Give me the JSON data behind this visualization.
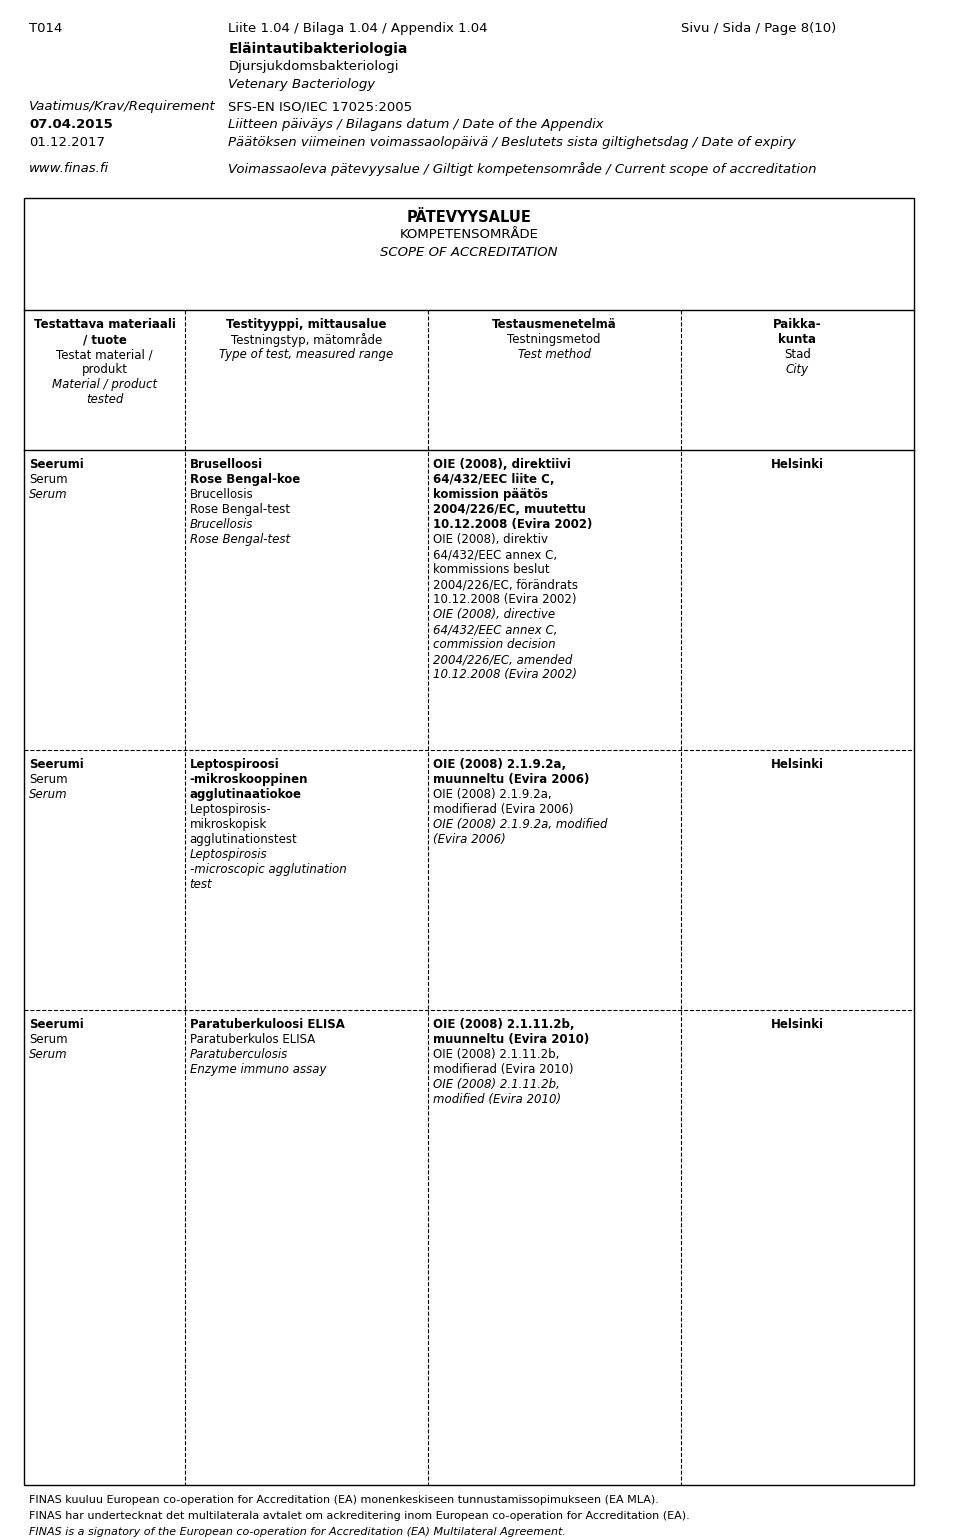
{
  "page_width": 9.6,
  "page_height": 15.4,
  "bg_color": "#ffffff",
  "header": {
    "top_left": "T014",
    "top_center": "Liite 1.04 / Bilaga 1.04 / Appendix 1.04",
    "top_right": "Sivu / Sida / Page 8(10)",
    "line2_bold": "Eläintautibakteriologia",
    "line3": "Djursjukdomsbakteriologi",
    "line4_italic": "Vetenary Bacteriology",
    "req_label": "Vaatimus/Krav/Requirement",
    "req_value": "SFS-EN ISO/IEC 17025:2005",
    "date1_label": "07.04.2015",
    "date1_value": "Liitteen päiväys / Bilagans datum / Date of the Appendix",
    "date2_label": "01.12.2017",
    "date2_value": "Päätöksen viimeinen voimassaolopäivä / Beslutets sista giltighetsdag / Date of expiry",
    "web_label": "www.finas.fi",
    "web_value": "Voimassaoleva pätevyysalue / Giltigt kompetensområde / Current scope of accreditation"
  },
  "table_header": {
    "title1": "PÄTEVYYSALUE",
    "title2": "KOMPETENSOMRÅDE",
    "title3": "SCOPE OF ACCREDITATION",
    "col1_line1": "Testattava materiaali",
    "col1_line2": "/ tuote",
    "col1_line3": "Testat material /",
    "col1_line4": "produkt",
    "col1_line5": "Material / product",
    "col1_line6": "tested",
    "col2_line1": "Testityyppi, mittausalue",
    "col2_line2": "Testningstyp, mätområde",
    "col2_line3": "Type of test, measured range",
    "col3_line1": "Testausmenetelmä",
    "col3_line2": "Testningsmetod",
    "col3_line3": "Test method",
    "col4_line1": "Paikka-",
    "col4_line2": "kunta",
    "col4_line3": "Stad",
    "col4_line4": "City"
  },
  "rows": [
    {
      "col1": [
        "Seerumi",
        "Serum",
        "Serum"
      ],
      "col1_styles": [
        "bold",
        "normal",
        "italic"
      ],
      "col2": [
        {
          "text": "Bruselloosi",
          "style": "bold"
        },
        {
          "text": "Rose Bengal-koe",
          "style": "bold"
        },
        {
          "text": "Brucellosis",
          "style": "normal"
        },
        {
          "text": "Rose Bengal-test",
          "style": "normal"
        },
        {
          "text": "Brucellosis",
          "style": "italic"
        },
        {
          "text": "Rose Bengal-test",
          "style": "italic"
        }
      ],
      "col3": [
        {
          "text": "OIE (2008), direktiivi",
          "style": "bold"
        },
        {
          "text": "64/432/EEC liite C,",
          "style": "bold"
        },
        {
          "text": "komission päätös",
          "style": "bold"
        },
        {
          "text": "2004/226/EC, muutettu",
          "style": "bold"
        },
        {
          "text": "10.12.2008 (Evira 2002)",
          "style": "bold"
        },
        {
          "text": "OIE (2008), direktiv",
          "style": "normal"
        },
        {
          "text": "64/432/EEC annex C,",
          "style": "normal"
        },
        {
          "text": "kommissions beslut",
          "style": "normal"
        },
        {
          "text": "2004/226/EC, förändrats",
          "style": "normal"
        },
        {
          "text": "10.12.2008 (Evira 2002)",
          "style": "normal"
        },
        {
          "text": "OIE (2008), directive",
          "style": "italic"
        },
        {
          "text": "64/432/EEC annex C,",
          "style": "italic"
        },
        {
          "text": "commission decision",
          "style": "italic"
        },
        {
          "text": "2004/226/EC, amended",
          "style": "italic"
        },
        {
          "text": "10.12.2008 (Evira 2002)",
          "style": "italic"
        }
      ],
      "col4": [
        {
          "text": "Helsinki",
          "style": "bold"
        }
      ]
    },
    {
      "col1": [
        "Seerumi",
        "Serum",
        "Serum"
      ],
      "col1_styles": [
        "bold",
        "normal",
        "italic"
      ],
      "col2": [
        {
          "text": "Leptospiroosi",
          "style": "bold"
        },
        {
          "text": "-mikroskooppinen",
          "style": "bold"
        },
        {
          "text": "agglutinaatiokoe",
          "style": "bold"
        },
        {
          "text": "Leptospirosis-",
          "style": "normal"
        },
        {
          "text": "mikroskopisk",
          "style": "normal"
        },
        {
          "text": "agglutinationstest",
          "style": "normal"
        },
        {
          "text": "Leptospirosis",
          "style": "italic"
        },
        {
          "text": "-microscopic agglutination",
          "style": "italic"
        },
        {
          "text": "test",
          "style": "italic"
        }
      ],
      "col3": [
        {
          "text": "OIE (2008) 2.1.9.2a,",
          "style": "bold"
        },
        {
          "text": "muunneltu (Evira 2006)",
          "style": "bold"
        },
        {
          "text": "OIE (2008) 2.1.9.2a,",
          "style": "normal"
        },
        {
          "text": "modifierad (Evira 2006)",
          "style": "normal"
        },
        {
          "text": "OIE (2008) 2.1.9.2a, modified",
          "style": "italic"
        },
        {
          "text": "(Evira 2006)",
          "style": "italic"
        }
      ],
      "col4": [
        {
          "text": "Helsinki",
          "style": "bold"
        }
      ]
    },
    {
      "col1": [
        "Seerumi",
        "Serum",
        "Serum"
      ],
      "col1_styles": [
        "bold",
        "normal",
        "italic"
      ],
      "col2": [
        {
          "text": "Paratuberkuloosi ELISA",
          "style": "bold"
        },
        {
          "text": "Paratuberkulos ELISA",
          "style": "normal"
        },
        {
          "text": "Paratuberculosis",
          "style": "italic"
        },
        {
          "text": "Enzyme immuno assay",
          "style": "italic"
        }
      ],
      "col3": [
        {
          "text": "OIE (2008) 2.1.11.2b,",
          "style": "bold"
        },
        {
          "text": "muunneltu (Evira 2010)",
          "style": "bold"
        },
        {
          "text": "OIE (2008) 2.1.11.2b,",
          "style": "normal"
        },
        {
          "text": "modifierad (Evira 2010)",
          "style": "normal"
        },
        {
          "text": "OIE (2008) 2.1.11.2b,",
          "style": "italic"
        },
        {
          "text": "modified (Evira 2010)",
          "style": "italic"
        }
      ],
      "col4": [
        {
          "text": "Helsinki",
          "style": "bold"
        }
      ]
    }
  ],
  "footer": [
    "FINAS kuuluu European co-operation for Accreditation (EA) monenkeskiseen tunnustamissopimukseen (EA MLA).",
    "FINAS har undertecknat det multilaterala avtalet om ackreditering inom European co-operation for Accreditation (EA).",
    "FINAS is a signatory of the European co-operation for Accreditation (EA) Multilateral Agreement."
  ]
}
